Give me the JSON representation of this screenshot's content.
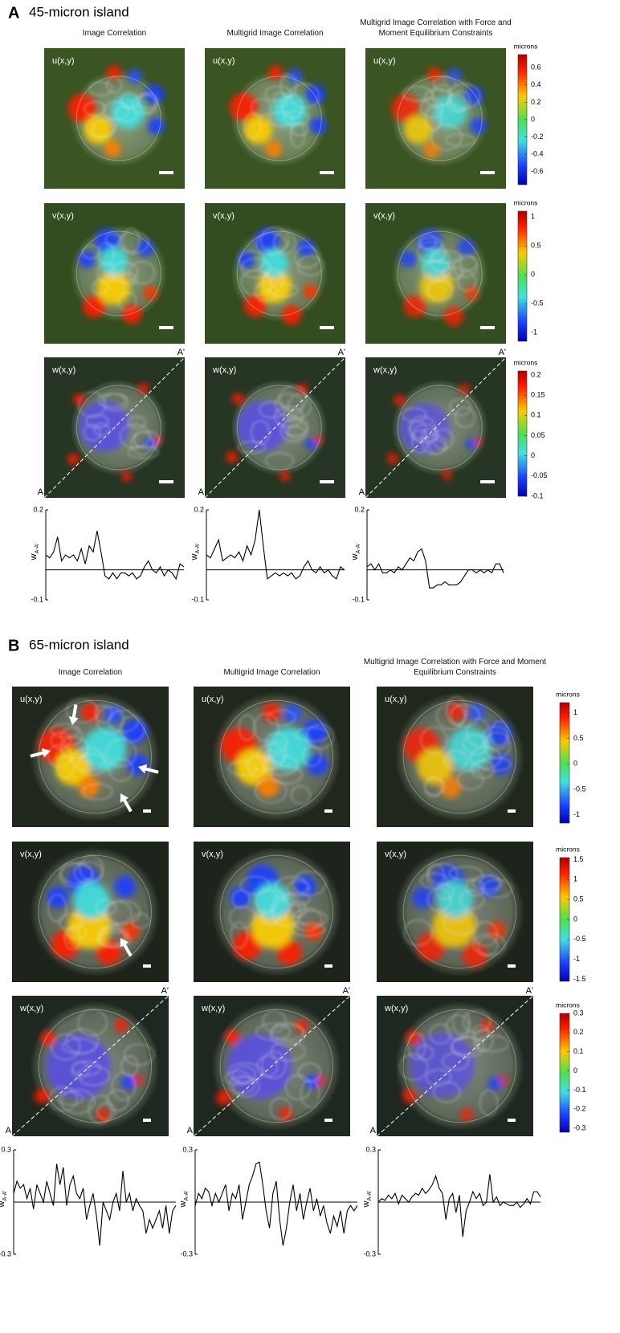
{
  "panels": [
    {
      "letter": "A",
      "title": "45-micron island",
      "columns": [
        "Image Correlation",
        "Multigrid Image Correlation",
        "Multigrid Image Correlation with Force and Moment Equilibrium Constraints"
      ],
      "rows": [
        {
          "label": "u(x,y)",
          "colorbar": {
            "label": "microns",
            "lim": [
              -0.75,
              0.75
            ],
            "ticks": [
              0.6,
              0.4,
              0.2,
              0,
              -0.2,
              -0.4,
              -0.6
            ]
          }
        },
        {
          "label": "v(x,y)",
          "colorbar": {
            "label": "microns",
            "lim": [
              -1.15,
              1.1
            ],
            "ticks": [
              1,
              0.5,
              0,
              -0.5,
              -1
            ]
          }
        },
        {
          "label": "w(x,y)",
          "colorbar": {
            "label": "microns",
            "lim": [
              -0.1,
              0.21
            ],
            "ticks": [
              0.2,
              0.15,
              0.1,
              0.05,
              0,
              -0.05,
              -0.1
            ]
          }
        }
      ],
      "line_end_labels": [
        "A",
        "A'"
      ],
      "profile": {
        "type": "line",
        "ylabel": "w",
        "ylabel_sub": "A-A'",
        "ylim": [
          -0.1,
          0.2
        ],
        "yticks": [
          0.2,
          -0.1
        ],
        "series": [
          {
            "values": [
              0.05,
              0.04,
              0.06,
              0.11,
              0.03,
              0.05,
              0.04,
              0.05,
              0.03,
              0.07,
              0.02,
              0.08,
              0.06,
              0.13,
              0.06,
              -0.02,
              -0.03,
              -0.01,
              -0.03,
              -0.01,
              -0.01,
              -0.02,
              -0.01,
              -0.03,
              -0.02,
              0.01,
              0.03,
              0.0,
              -0.01,
              0.01,
              -0.02,
              0.0,
              -0.01,
              -0.03,
              0.02,
              0.01
            ]
          },
          {
            "values": [
              0.05,
              0.04,
              0.07,
              0.1,
              0.03,
              0.04,
              0.05,
              0.04,
              0.06,
              0.03,
              0.08,
              0.05,
              0.1,
              0.2,
              0.08,
              -0.03,
              -0.02,
              -0.01,
              -0.02,
              -0.01,
              -0.02,
              -0.01,
              -0.03,
              -0.02,
              0.01,
              0.03,
              0.0,
              -0.01,
              0.01,
              -0.01,
              0.0,
              -0.02,
              -0.03,
              0.01,
              0.0
            ]
          },
          {
            "values": [
              0.01,
              0.02,
              0.0,
              0.02,
              -0.01,
              -0.01,
              0.0,
              -0.01,
              0.01,
              0.0,
              0.02,
              0.04,
              0.03,
              0.06,
              0.07,
              0.03,
              -0.06,
              -0.06,
              -0.05,
              -0.05,
              -0.04,
              -0.05,
              -0.05,
              -0.05,
              -0.04,
              -0.02,
              0.0,
              0.0,
              -0.01,
              0.0,
              -0.01,
              0.0,
              -0.01,
              0.02,
              0.02,
              -0.01
            ]
          }
        ]
      }
    },
    {
      "letter": "B",
      "title": "65-micron island",
      "columns": [
        "Image Correlation",
        "Multigrid Image Correlation",
        "Multigrid Image Correlation with Force and Moment Equilibrium Constraints"
      ],
      "rows": [
        {
          "label": "u(x,y)",
          "colorbar": {
            "label": "microns",
            "lim": [
              -1.16,
              1.2
            ],
            "ticks": [
              1,
              0.5,
              0,
              -0.5,
              -1
            ]
          }
        },
        {
          "label": "v(x,y)",
          "colorbar": {
            "label": "microns",
            "lim": [
              -1.55,
              1.55
            ],
            "ticks": [
              1.5,
              1,
              0.5,
              0,
              -0.5,
              -1,
              -1.5
            ]
          }
        },
        {
          "label": "w(x,y)",
          "colorbar": {
            "label": "microns",
            "lim": [
              -0.32,
              0.3
            ],
            "ticks": [
              0.3,
              0.2,
              0.1,
              0,
              -0.1,
              -0.2,
              -0.3
            ]
          }
        }
      ],
      "line_end_labels": [
        "A",
        "A'"
      ],
      "profile": {
        "type": "line",
        "ylabel": "w",
        "ylabel_sub": "A-A'",
        "ylim": [
          -0.3,
          0.3
        ],
        "yticks": [
          0.3,
          -0.3
        ],
        "series": [
          {
            "values": [
              0.05,
              0.12,
              0.08,
              0.1,
              0.02,
              0.08,
              -0.04,
              0.1,
              0.05,
              0.0,
              0.12,
              0.05,
              -0.02,
              0.22,
              0.1,
              0.2,
              -0.02,
              0.1,
              0.15,
              0.05,
              0.02,
              0.08,
              -0.1,
              -0.02,
              0.05,
              -0.08,
              -0.25,
              0.0,
              -0.05,
              -0.1,
              0.0,
              0.05,
              -0.05,
              0.18,
              0.0,
              0.05,
              -0.05,
              0.02,
              -0.02,
              -0.05,
              -0.18,
              -0.1,
              -0.15,
              -0.1,
              -0.05,
              -0.15,
              -0.02,
              -0.18,
              -0.05,
              -0.02
            ]
          },
          {
            "values": [
              -0.02,
              0.05,
              0.02,
              0.08,
              0.06,
              -0.02,
              0.05,
              0.0,
              0.05,
              0.1,
              -0.05,
              0.05,
              0.02,
              0.1,
              -0.1,
              0.0,
              0.1,
              0.15,
              0.22,
              0.23,
              0.1,
              -0.05,
              -0.15,
              0.05,
              0.12,
              -0.1,
              -0.25,
              -0.15,
              0.0,
              0.1,
              -0.05,
              0.05,
              -0.1,
              0.0,
              0.08,
              -0.05,
              0.02,
              -0.08,
              -0.02,
              -0.12,
              -0.18,
              -0.08,
              -0.14,
              -0.05,
              -0.18,
              -0.05,
              -0.02,
              -0.05,
              -0.02
            ]
          },
          {
            "values": [
              0.0,
              0.02,
              0.01,
              0.04,
              0.02,
              0.05,
              -0.01,
              0.04,
              0.02,
              0.0,
              0.03,
              0.05,
              0.04,
              0.08,
              0.05,
              0.07,
              0.1,
              0.15,
              0.08,
              0.05,
              -0.1,
              0.02,
              0.05,
              -0.06,
              0.04,
              -0.2,
              -0.05,
              0.0,
              0.06,
              0.02,
              0.05,
              -0.02,
              0.0,
              0.16,
              0.0,
              0.03,
              -0.02,
              0.0,
              -0.01,
              -0.02,
              -0.02,
              0.0,
              -0.03,
              -0.01,
              0.02,
              -0.01,
              0.06,
              0.06,
              0.03
            ]
          }
        ]
      }
    }
  ]
}
